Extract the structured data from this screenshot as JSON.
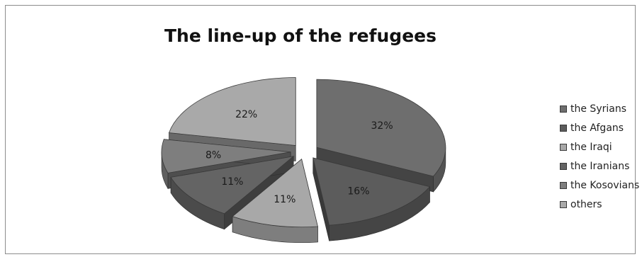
{
  "chart_data": {
    "type": "pie",
    "title": "The line-up of the refugees",
    "categories": [
      "the Syrians",
      "the Afgans",
      "the Iraqi",
      "the Iranians",
      "the Kosovians",
      "others"
    ],
    "values": [
      32,
      16,
      11,
      11,
      8,
      22
    ],
    "labels": [
      "32%",
      "16%",
      "11%",
      "11%",
      "8%",
      "22%"
    ],
    "colors": [
      "#6e6e6e",
      "#5c5c5c",
      "#a8a8a8",
      "#646464",
      "#7e7e7e",
      "#a9a9a9"
    ],
    "exploded": true,
    "style": "3d",
    "legend_position": "right"
  }
}
